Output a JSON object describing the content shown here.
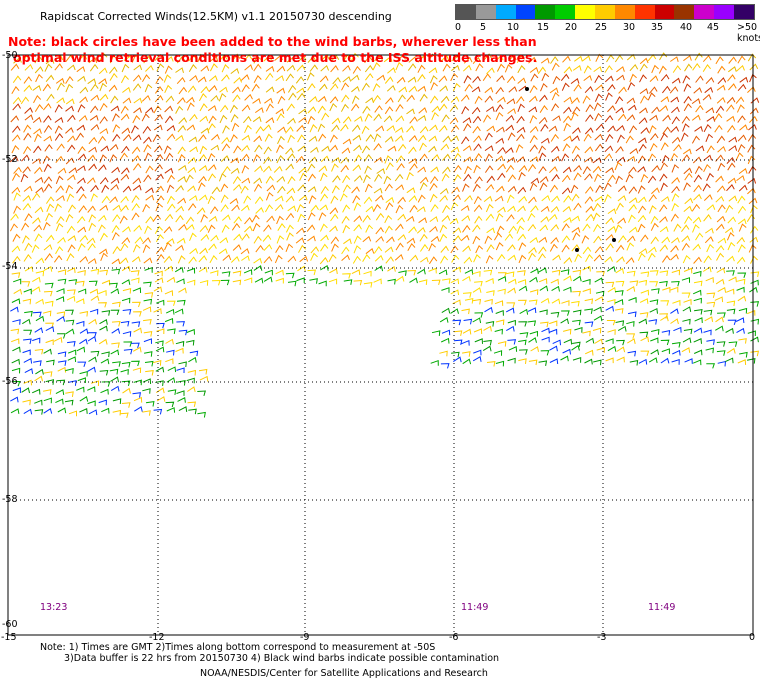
{
  "title": "Rapidscat Corrected Winds(12.5KM) v1.1 20150730 descending",
  "note": {
    "line1": "Note: black circles have been added to the wind barbs, wherever less than",
    "line2": "optimal wind retrieval conditions are met due to the ISS altitude changes."
  },
  "legend": {
    "colors": [
      "#555555",
      "#999999",
      "#00aaff",
      "#0044ff",
      "#009900",
      "#00cc00",
      "#ffff00",
      "#ffcc00",
      "#ff8800",
      "#ff3300",
      "#cc0000",
      "#993300",
      "#cc00cc",
      "#9900ff",
      "#330066"
    ],
    "ticks": [
      "0",
      "5",
      "10",
      "15",
      "20",
      "25",
      "30",
      "35",
      "40",
      "45",
      ">50 knots"
    ]
  },
  "map": {
    "y_ticks": [
      "-50",
      "-52",
      "-54",
      "-56",
      "-58",
      "-60"
    ],
    "x_ticks": [
      "-15",
      "-12",
      "-9",
      "-6",
      "-3",
      "0"
    ],
    "time_labels": [
      "13:23",
      "11:49",
      "11:49"
    ]
  },
  "footer": {
    "line1": "Note: 1) Times are GMT 2)Times along bottom correspond to measurement at -50S",
    "line2": "3)Data buffer is 22 hrs from 20150730 4) Black wind barbs indicate possible contamination",
    "credit": "NOAA/NESDIS/Center for Satellite Applications and Research"
  }
}
